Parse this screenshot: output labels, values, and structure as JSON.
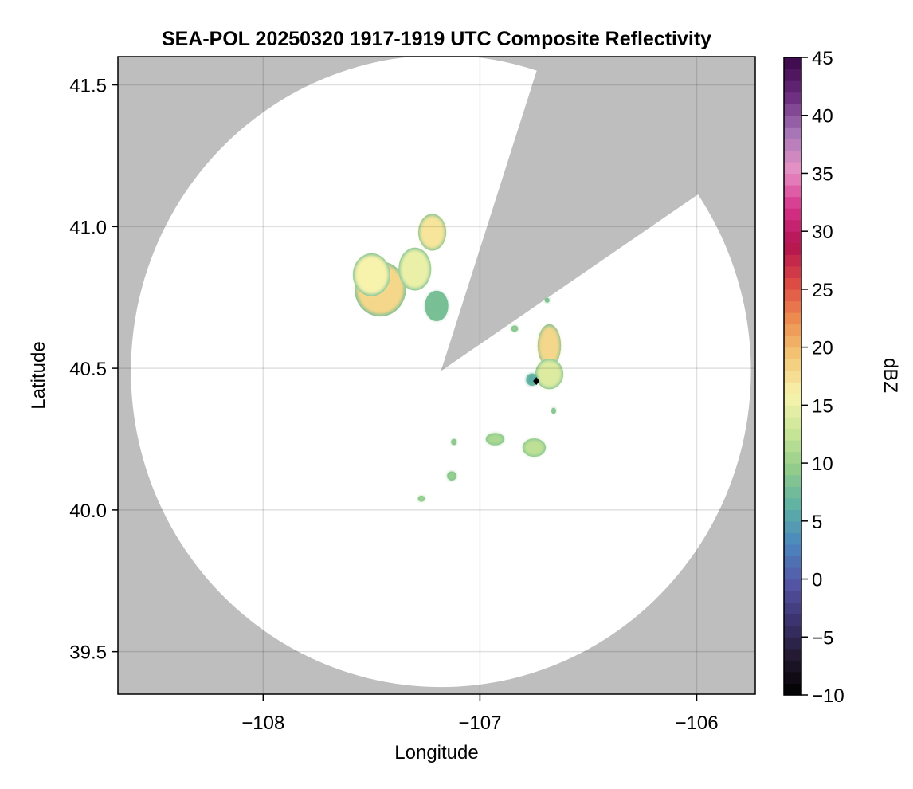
{
  "chart_data": {
    "type": "heatmap",
    "title": "SEA-POL 20250320 1917-1919 UTC Composite Reflectivity",
    "xlabel": "Longitude",
    "ylabel": "Latitude",
    "xlim": [
      -108.67,
      -105.73
    ],
    "ylim": [
      39.35,
      41.6
    ],
    "xticks": [
      -108,
      -107,
      -106
    ],
    "xtick_labels": [
      "−108",
      "−107",
      "−106"
    ],
    "yticks": [
      39.5,
      40.0,
      40.5,
      41.0,
      41.5
    ],
    "ytick_labels": [
      "39.5",
      "40.0",
      "40.5",
      "41.0",
      "41.5"
    ],
    "grid": true,
    "background_color": "#bebebe",
    "coverage": {
      "center": [
        -107.18,
        40.49
      ],
      "radius_lat_deg": 1.115,
      "radius_lon_deg": 1.43,
      "blocked_sector_from_north_deg": [
        18,
        56
      ]
    },
    "radar_site": [
      -106.74,
      40.455
    ],
    "colorbar": {
      "label": "dBZ",
      "min": -10,
      "max": 45,
      "step": 1,
      "ticks": [
        -10,
        -5,
        0,
        5,
        10,
        15,
        20,
        25,
        30,
        35,
        40,
        45
      ],
      "tick_labels": [
        "−10",
        "−5",
        "0",
        "5",
        "10",
        "15",
        "20",
        "25",
        "30",
        "35",
        "40",
        "45"
      ],
      "colors": [
        "#000000",
        "#22182e",
        "#3c3470",
        "#5556a6",
        "#4a86bf",
        "#5cb0a5",
        "#8fcb8a",
        "#c9e596",
        "#f7f4ae",
        "#f3c877",
        "#ee8d4f",
        "#dc4a45",
        "#b3124f",
        "#d6338c",
        "#e792c6",
        "#a776b7",
        "#6a2a7c",
        "#3a0748"
      ]
    },
    "echo_cells": [
      {
        "lon": -107.46,
        "lat": 40.78,
        "r_lon": 0.11,
        "r_lat": 0.09,
        "dbz": 18
      },
      {
        "lon": -107.5,
        "lat": 40.83,
        "r_lon": 0.08,
        "r_lat": 0.07,
        "dbz": 16
      },
      {
        "lon": -107.3,
        "lat": 40.85,
        "r_lon": 0.07,
        "r_lat": 0.07,
        "dbz": 15
      },
      {
        "lon": -107.22,
        "lat": 40.98,
        "r_lon": 0.06,
        "r_lat": 0.06,
        "dbz": 17
      },
      {
        "lon": -107.2,
        "lat": 40.72,
        "r_lon": 0.05,
        "r_lat": 0.05,
        "dbz": 8
      },
      {
        "lon": -106.68,
        "lat": 40.58,
        "r_lon": 0.05,
        "r_lat": 0.07,
        "dbz": 18
      },
      {
        "lon": -106.68,
        "lat": 40.48,
        "r_lon": 0.06,
        "r_lat": 0.05,
        "dbz": 14
      },
      {
        "lon": -106.76,
        "lat": 40.46,
        "r_lon": 0.025,
        "r_lat": 0.02,
        "dbz": 6
      },
      {
        "lon": -106.93,
        "lat": 40.25,
        "r_lon": 0.04,
        "r_lat": 0.02,
        "dbz": 11
      },
      {
        "lon": -106.75,
        "lat": 40.22,
        "r_lon": 0.05,
        "r_lat": 0.03,
        "dbz": 12
      },
      {
        "lon": -107.13,
        "lat": 40.12,
        "r_lon": 0.02,
        "r_lat": 0.015,
        "dbz": 10
      },
      {
        "lon": -107.27,
        "lat": 40.04,
        "r_lon": 0.015,
        "r_lat": 0.01,
        "dbz": 11
      },
      {
        "lon": -107.12,
        "lat": 40.24,
        "r_lon": 0.012,
        "r_lat": 0.01,
        "dbz": 10
      },
      {
        "lon": -106.66,
        "lat": 40.35,
        "r_lon": 0.01,
        "r_lat": 0.01,
        "dbz": 10
      },
      {
        "lon": -106.69,
        "lat": 40.74,
        "r_lon": 0.01,
        "r_lat": 0.008,
        "dbz": 9
      },
      {
        "lon": -106.84,
        "lat": 40.64,
        "r_lon": 0.015,
        "r_lat": 0.01,
        "dbz": 10
      }
    ]
  }
}
